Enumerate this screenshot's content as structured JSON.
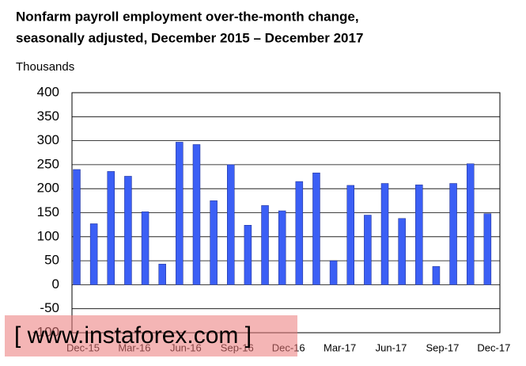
{
  "chart_data": {
    "type": "bar",
    "title": [
      "Nonfarm payroll employment over-the-month change,",
      "seasonally adjusted, December 2015 – December 2017"
    ],
    "y_label": "Thousands",
    "categories": [
      "Dec-15",
      null,
      null,
      "Mar-16",
      null,
      null,
      "Jun-16",
      null,
      null,
      "Sep-16",
      null,
      null,
      "Dec-16",
      null,
      null,
      "Mar-17",
      null,
      null,
      "Jun-17",
      null,
      null,
      "Sep-17",
      null,
      null,
      "Dec-17"
    ],
    "values": [
      240,
      127,
      236,
      226,
      152,
      43,
      297,
      292,
      175,
      250,
      124,
      165,
      154,
      215,
      233,
      50,
      207,
      145,
      211,
      138,
      208,
      38,
      211,
      252,
      148
    ],
    "color": "#3b5ff5",
    "ylim": [
      -100,
      400
    ],
    "yticks": [
      -100,
      -50,
      0,
      50,
      100,
      150,
      200,
      250,
      300,
      350,
      400
    ],
    "grid": true,
    "watermark": "[ www.instaforex.com ]"
  }
}
